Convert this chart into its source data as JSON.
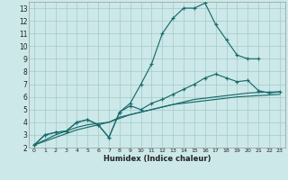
{
  "xlabel": "Humidex (Indice chaleur)",
  "bg_color": "#cce8e8",
  "grid_color": "#aacece",
  "line_color": "#1a6b6b",
  "xlim": [
    -0.5,
    23.5
  ],
  "ylim": [
    2,
    13.5
  ],
  "xticks": [
    0,
    1,
    2,
    3,
    4,
    5,
    6,
    7,
    8,
    9,
    10,
    11,
    12,
    13,
    14,
    15,
    16,
    17,
    18,
    19,
    20,
    21,
    22,
    23
  ],
  "yticks": [
    2,
    3,
    4,
    5,
    6,
    7,
    8,
    9,
    10,
    11,
    12,
    13
  ],
  "series": [
    {
      "x": [
        0,
        1,
        2,
        3,
        4,
        5,
        6,
        7,
        8,
        9,
        10,
        11,
        12,
        13,
        14,
        15,
        16,
        17,
        18,
        19,
        20,
        21
      ],
      "y": [
        2.2,
        3.0,
        3.2,
        3.3,
        4.0,
        4.2,
        3.8,
        2.8,
        4.8,
        5.5,
        7.0,
        8.6,
        11.0,
        12.2,
        13.0,
        13.0,
        13.4,
        11.7,
        10.5,
        9.3,
        9.0,
        9.0
      ],
      "marker": true
    },
    {
      "x": [
        0,
        1,
        2,
        3,
        4,
        5,
        6,
        7,
        8,
        9,
        10,
        11,
        12,
        13,
        14,
        15,
        16,
        17,
        18,
        19,
        20,
        21,
        22,
        23
      ],
      "y": [
        2.2,
        3.0,
        3.2,
        3.3,
        4.0,
        4.2,
        3.8,
        2.8,
        4.8,
        5.3,
        5.0,
        5.5,
        5.8,
        6.2,
        6.6,
        7.0,
        7.5,
        7.8,
        7.5,
        7.2,
        7.3,
        6.5,
        6.3,
        6.4
      ],
      "marker": true
    },
    {
      "x": [
        0,
        1,
        2,
        3,
        4,
        5,
        6,
        7,
        8,
        9,
        10,
        11,
        12,
        13,
        14,
        15,
        16,
        17,
        18,
        19,
        20,
        21,
        22,
        23
      ],
      "y": [
        2.2,
        2.6,
        3.0,
        3.3,
        3.6,
        3.8,
        3.9,
        4.0,
        4.3,
        4.6,
        4.8,
        5.0,
        5.2,
        5.4,
        5.6,
        5.8,
        5.9,
        6.0,
        6.1,
        6.2,
        6.3,
        6.35,
        6.38,
        6.4
      ],
      "marker": false
    },
    {
      "x": [
        0,
        1,
        2,
        3,
        4,
        5,
        6,
        7,
        8,
        9,
        10,
        11,
        12,
        13,
        14,
        15,
        16,
        17,
        18,
        19,
        20,
        21,
        22,
        23
      ],
      "y": [
        2.2,
        2.5,
        2.8,
        3.1,
        3.4,
        3.6,
        3.8,
        4.0,
        4.4,
        4.6,
        4.8,
        5.0,
        5.2,
        5.4,
        5.5,
        5.6,
        5.7,
        5.8,
        5.9,
        6.0,
        6.05,
        6.1,
        6.15,
        6.2
      ],
      "marker": false
    }
  ]
}
